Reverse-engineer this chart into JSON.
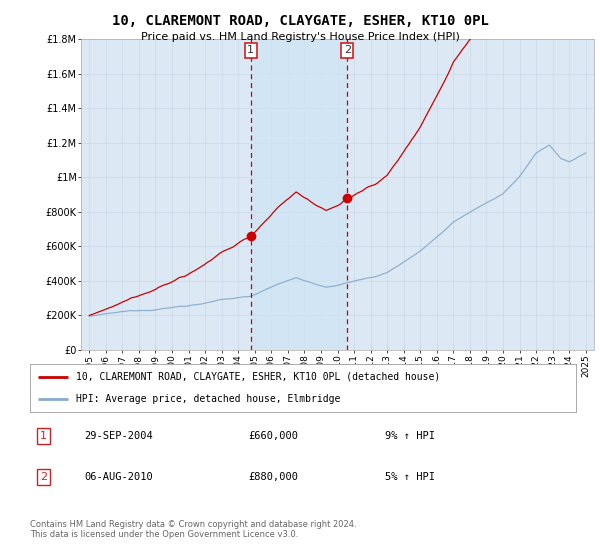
{
  "title": "10, CLAREMONT ROAD, CLAYGATE, ESHER, KT10 0PL",
  "subtitle": "Price paid vs. HM Land Registry's House Price Index (HPI)",
  "legend_line1": "10, CLAREMONT ROAD, CLAYGATE, ESHER, KT10 0PL (detached house)",
  "legend_line2": "HPI: Average price, detached house, Elmbridge",
  "table_row1_num": "1",
  "table_row1_date": "29-SEP-2004",
  "table_row1_price": "£660,000",
  "table_row1_hpi": "9% ↑ HPI",
  "table_row2_num": "2",
  "table_row2_date": "06-AUG-2010",
  "table_row2_price": "£880,000",
  "table_row2_hpi": "5% ↑ HPI",
  "footnote": "Contains HM Land Registry data © Crown copyright and database right 2024.\nThis data is licensed under the Open Government Licence v3.0.",
  "marker1_year": 2004.75,
  "marker2_year": 2010.6,
  "marker1_price": 660000,
  "marker2_price": 880000,
  "ylim_min": 0,
  "ylim_max": 1800000,
  "xlim_min": 1994.5,
  "xlim_max": 2025.5,
  "red_color": "#cc0000",
  "blue_color": "#88aacc",
  "shade_color": "#d0e4f5",
  "marker_dot_color": "#cc0000",
  "bg_color": "#dce9f5",
  "plot_bg": "#ffffff",
  "grid_color": "#c8d8e8"
}
